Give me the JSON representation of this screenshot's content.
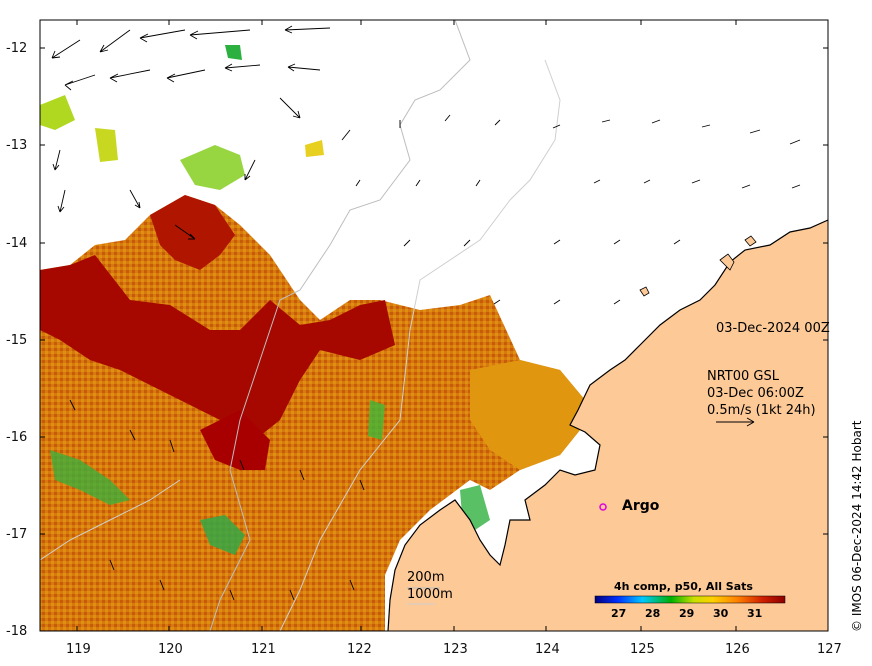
{
  "map": {
    "lon_ticks": [
      "119",
      "120",
      "121",
      "122",
      "123",
      "124",
      "125",
      "126",
      "127"
    ],
    "lat_ticks": [
      "-12",
      "-13",
      "-14",
      "-15",
      "-16",
      "-17",
      "-18"
    ],
    "date_label": "03-Dec-2024 00Z",
    "product_line1": "NRT00 GSL",
    "product_line2": "03-Dec 06:00Z",
    "vector_scale_label": "0.5m/s (1kt 24h)",
    "isobath_200": "200m",
    "isobath_1000": "1000m",
    "argo_label": "Argo",
    "credit": "© IMOS 06-Dec-2024 14:42 Hobart",
    "colors": {
      "land": "#fcc997",
      "warm": "#a80000",
      "mid": "#d4700a",
      "cool": "#22b14c",
      "argo_marker": "#e000e0"
    }
  },
  "colorbar": {
    "title": "4h comp, p50, All Sats",
    "ticks": [
      "27",
      "28",
      "29",
      "30",
      "31"
    ],
    "stops": [
      "#000080",
      "#0030ff",
      "#00c8ff",
      "#00b000",
      "#c8e000",
      "#ffd000",
      "#ff8000",
      "#d02000",
      "#8b0000"
    ]
  }
}
